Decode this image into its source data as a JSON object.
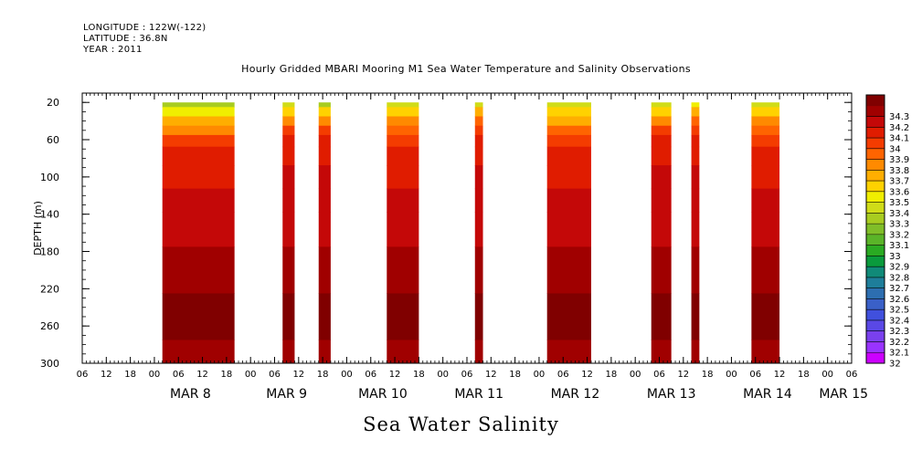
{
  "header": {
    "longitude": "LONGITUDE : 122W(-122)",
    "latitude": "LATITUDE : 36.8N",
    "year": "YEAR : 2011"
  },
  "chart_data": {
    "type": "heatmap",
    "title": "Hourly Gridded MBARI Mooring M1 Sea Water Temperature and Salinity Observations",
    "bottom_title": "Sea Water Salinity",
    "ylabel": "DEPTH (m)",
    "xlim_hours_from_mar7_06": [
      0,
      192
    ],
    "ylim": [
      300,
      10
    ],
    "y_ticks": [
      20,
      60,
      100,
      140,
      180,
      220,
      260,
      300
    ],
    "x_hour_ticks": [
      "06",
      "12",
      "18",
      "00",
      "06",
      "12",
      "18",
      "00",
      "06",
      "12",
      "18",
      "00",
      "06",
      "12",
      "18",
      "00",
      "06",
      "12",
      "18",
      "00",
      "06",
      "12",
      "18",
      "00",
      "06",
      "12",
      "18",
      "00",
      "06",
      "12",
      "18",
      "00",
      "06"
    ],
    "x_date_labels": [
      {
        "label": "MAR  8",
        "hour": 27
      },
      {
        "label": "MAR  9",
        "hour": 51
      },
      {
        "label": "MAR 10",
        "hour": 75
      },
      {
        "label": "MAR 11",
        "hour": 99
      },
      {
        "label": "MAR 12",
        "hour": 123
      },
      {
        "label": "MAR 13",
        "hour": 147
      },
      {
        "label": "MAR 14",
        "hour": 171
      },
      {
        "label": "MAR 15",
        "hour": 190
      }
    ],
    "colorbar": {
      "labels": [
        "32",
        "32.1",
        "32.2",
        "32.3",
        "32.4",
        "32.5",
        "32.6",
        "32.7",
        "32.8",
        "32.9",
        "33",
        "33.1",
        "33.2",
        "33.3",
        "33.4",
        "33.5",
        "33.6",
        "33.7",
        "33.8",
        "33.9",
        "34",
        "34.1",
        "34.2",
        "34.3"
      ],
      "colors": [
        "#cc00ff",
        "#9933ff",
        "#7a40ee",
        "#5a48e6",
        "#4050dd",
        "#3a60c8",
        "#2d6eb0",
        "#1e7e9a",
        "#108a78",
        "#0a9a3c",
        "#2aaa22",
        "#5ab428",
        "#80be28",
        "#a8cc20",
        "#d0dc18",
        "#f0ee00",
        "#ffd200",
        "#ffae00",
        "#ff8a00",
        "#ff6400",
        "#f43c00",
        "#e01c00",
        "#c40808",
        "#a00000",
        "#800000"
      ]
    },
    "depth_levels": [
      20,
      30,
      40,
      50,
      60,
      75,
      100,
      125,
      150,
      200,
      250,
      300
    ],
    "data_segments": [
      {
        "start_hour": 20,
        "end_hour": 38,
        "profile": [
          33.2,
          33.4,
          33.6,
          33.75,
          33.9,
          34.0,
          34.05,
          34.1,
          34.15,
          34.2,
          34.3,
          34.25
        ]
      },
      {
        "start_hour": 50,
        "end_hour": 53,
        "profile": [
          33.3,
          33.5,
          33.75,
          33.9,
          34.0,
          34.05,
          34.1,
          34.1,
          34.15,
          34.2,
          34.3,
          34.25
        ]
      },
      {
        "start_hour": 59,
        "end_hour": 62,
        "profile": [
          33.2,
          33.5,
          33.7,
          33.9,
          34.0,
          34.05,
          34.1,
          34.1,
          34.15,
          34.2,
          34.3,
          34.25
        ]
      },
      {
        "start_hour": 76,
        "end_hour": 84,
        "profile": [
          33.3,
          33.5,
          33.7,
          33.85,
          33.95,
          34.0,
          34.05,
          34.1,
          34.15,
          34.2,
          34.3,
          34.25
        ]
      },
      {
        "start_hour": 98,
        "end_hour": 100,
        "profile": [
          33.3,
          33.6,
          33.8,
          33.9,
          34.0,
          34.05,
          34.1,
          34.1,
          34.15,
          34.2,
          34.3,
          34.25
        ]
      },
      {
        "start_hour": 116,
        "end_hour": 127,
        "profile": [
          33.3,
          33.5,
          33.6,
          33.8,
          33.9,
          34.0,
          34.05,
          34.1,
          34.15,
          34.2,
          34.3,
          34.25
        ]
      },
      {
        "start_hour": 142,
        "end_hour": 147,
        "profile": [
          33.3,
          33.5,
          33.7,
          33.9,
          34.0,
          34.05,
          34.1,
          34.1,
          34.15,
          34.2,
          34.3,
          34.25
        ]
      },
      {
        "start_hour": 152,
        "end_hour": 154,
        "profile": [
          33.4,
          33.6,
          33.8,
          33.9,
          34.0,
          34.05,
          34.1,
          34.1,
          34.15,
          34.2,
          34.3,
          34.25
        ]
      },
      {
        "start_hour": 167,
        "end_hour": 174,
        "profile": [
          33.3,
          33.5,
          33.7,
          33.85,
          33.95,
          34.0,
          34.05,
          34.1,
          34.15,
          34.2,
          34.3,
          34.25
        ]
      }
    ]
  }
}
